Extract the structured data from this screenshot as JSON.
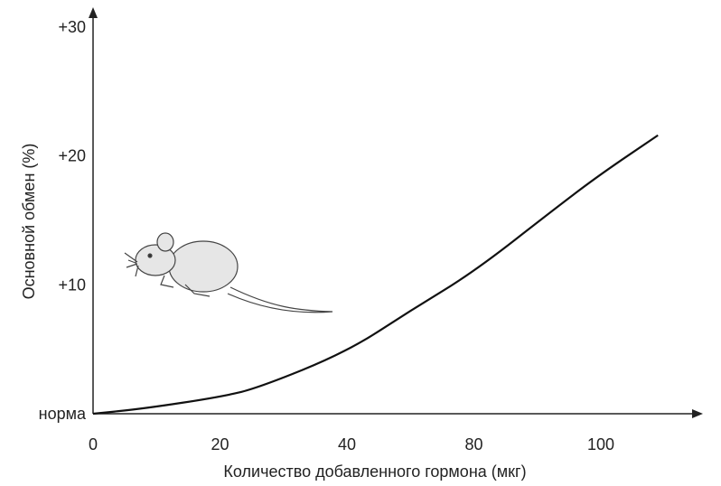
{
  "chart_data": {
    "type": "line",
    "title": "",
    "xlabel": "Количество добавленного гормона (мкг)",
    "ylabel": "Основной обмен (%)",
    "x_ticks": [
      "0",
      "20",
      "40",
      "80",
      "100"
    ],
    "x_tick_values": [
      0,
      20,
      40,
      80,
      100
    ],
    "y_ticks": [
      "норма",
      "+10",
      "+20",
      "+30"
    ],
    "y_tick_values": [
      0,
      10,
      20,
      30
    ],
    "ylim": [
      0,
      30
    ],
    "grid": false,
    "series": [
      {
        "x": [
          0,
          8,
          20,
          26,
          40,
          60,
          80,
          93,
          100,
          109
        ],
        "y": [
          0,
          0.4,
          1.3,
          2,
          4.8,
          8,
          11,
          16,
          18.6,
          21.6
        ],
        "color": "#111111"
      }
    ]
  }
}
